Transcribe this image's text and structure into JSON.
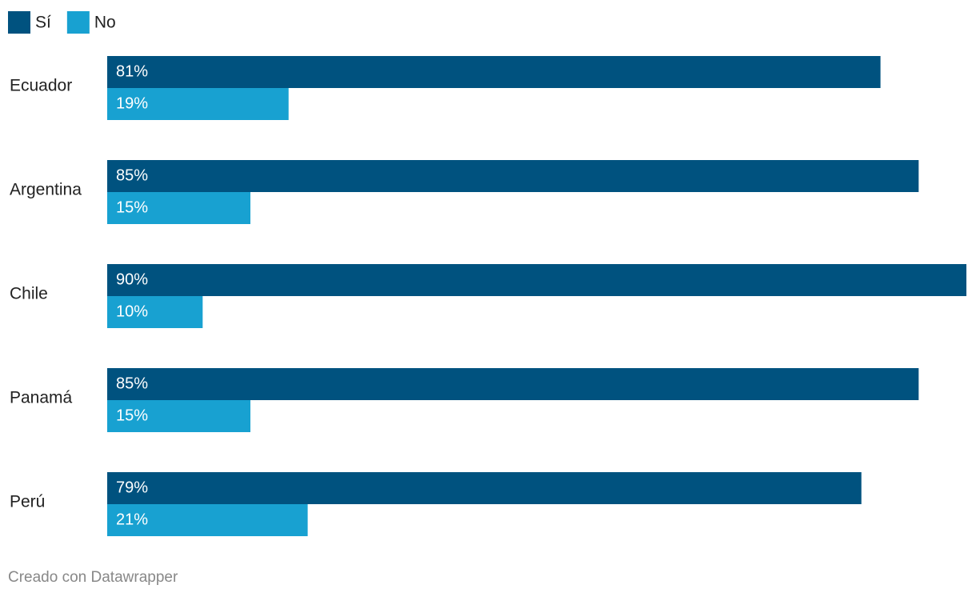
{
  "chart_data": {
    "type": "bar",
    "categories": [
      "Ecuador",
      "Argentina",
      "Chile",
      "Panamá",
      "Perú"
    ],
    "series": [
      {
        "name": "Sí",
        "color": "#00527f",
        "values": [
          81,
          85,
          90,
          85,
          79
        ],
        "value_labels": [
          "81%",
          "85%",
          "90%",
          "85%",
          "79%"
        ]
      },
      {
        "name": "No",
        "color": "#18a1d1",
        "values": [
          19,
          15,
          10,
          15,
          21
        ],
        "value_labels": [
          "19%",
          "15%",
          "10%",
          "15%",
          "21%"
        ]
      }
    ],
    "xlim": [
      0,
      90
    ],
    "credit": "Creado con Datawrapper"
  }
}
